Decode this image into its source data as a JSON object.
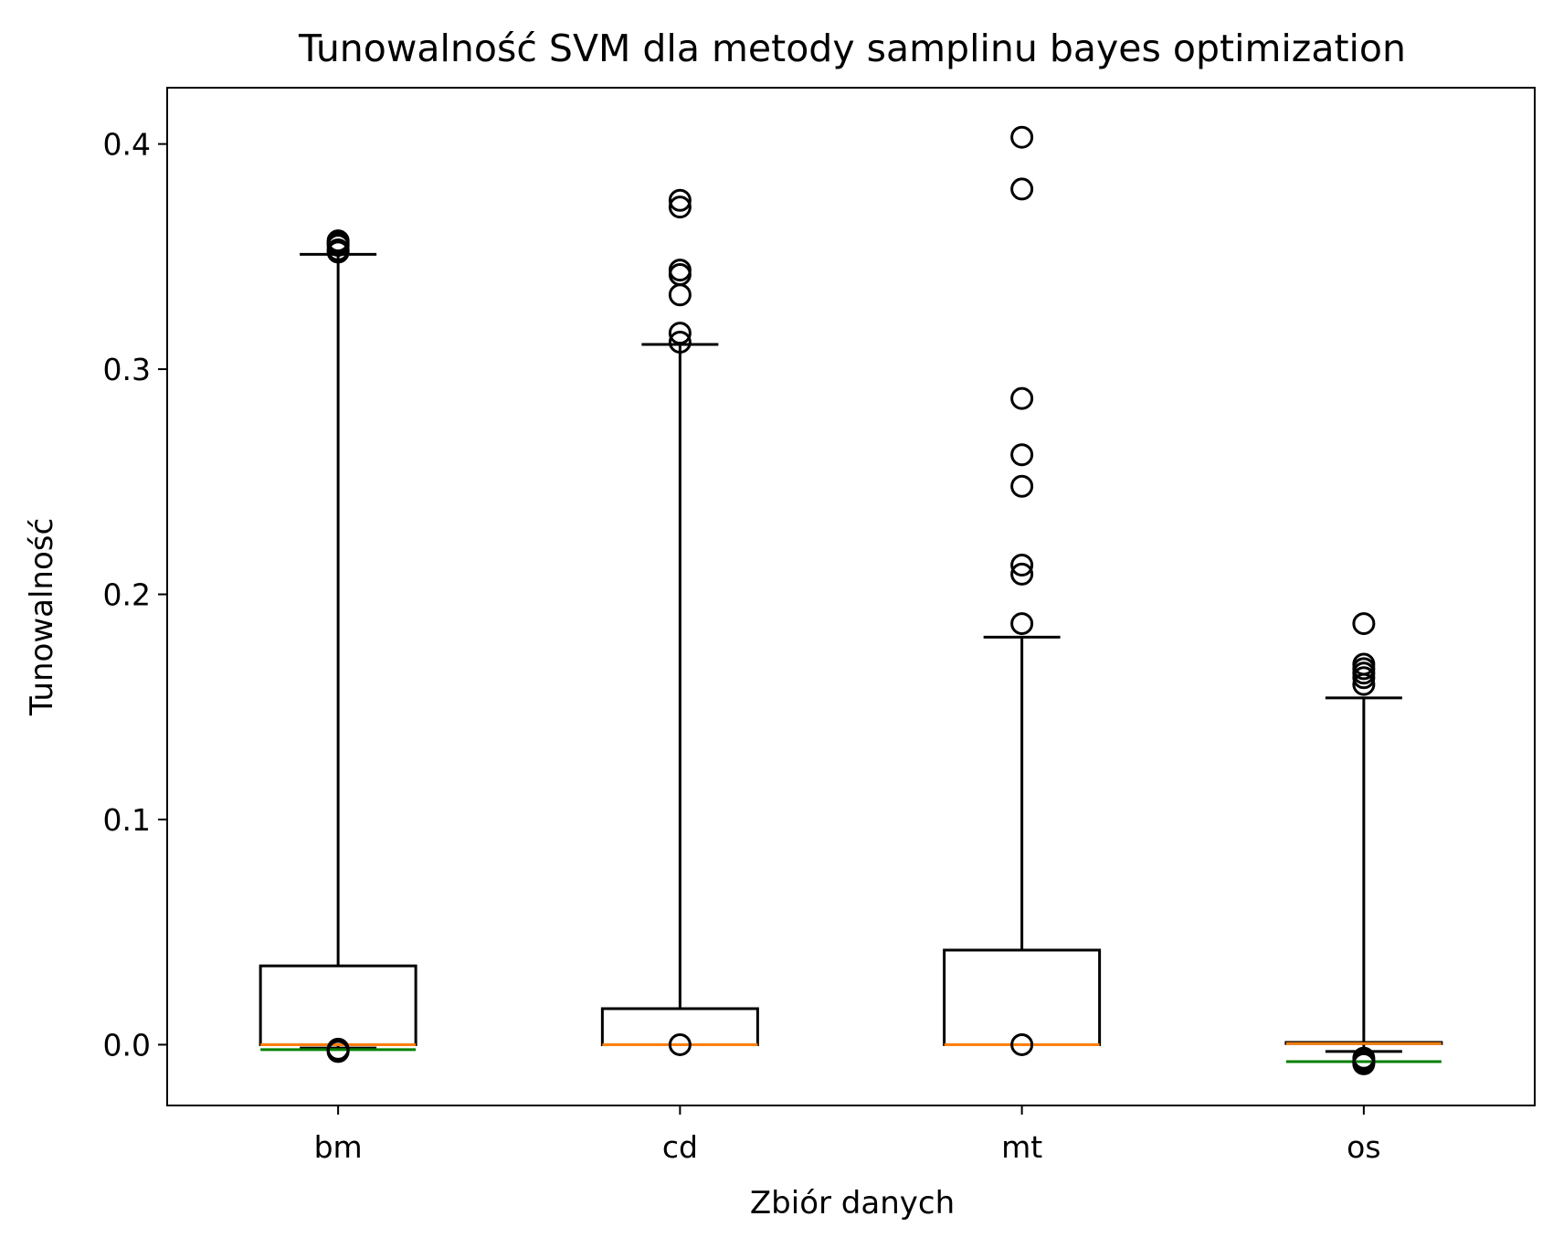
{
  "chart_data": {
    "type": "box",
    "title": "Tunowalność SVM dla metody samplinu bayes optimization",
    "xlabel": "Zbiór danych",
    "ylabel": "Tunowalność",
    "ylim": [
      -0.027,
      0.425
    ],
    "yticks": [
      "0.0",
      "0.1",
      "0.2",
      "0.3",
      "0.4"
    ],
    "ytick_values": [
      0.0,
      0.1,
      0.2,
      0.3,
      0.4
    ],
    "categories": [
      "bm",
      "cd",
      "mt",
      "os"
    ],
    "grid": false,
    "boxes": [
      {
        "label": "bm",
        "q1": 0.0,
        "median": 0.0,
        "q3": 0.035,
        "whisker_low": -0.0015,
        "whisker_high": 0.351,
        "mean": -0.0022,
        "outliers": [
          0.357,
          0.356,
          0.355,
          0.353,
          0.352,
          -0.002,
          -0.0025,
          -0.003
        ]
      },
      {
        "label": "cd",
        "q1": 0.0,
        "median": 0.0,
        "q3": 0.016,
        "whisker_low": 0.0,
        "whisker_high": 0.311,
        "mean": null,
        "outliers": [
          0.375,
          0.372,
          0.344,
          0.342,
          0.333,
          0.316,
          0.312,
          0.0
        ]
      },
      {
        "label": "mt",
        "q1": 0.0,
        "median": 0.0,
        "q3": 0.042,
        "whisker_low": 0.0,
        "whisker_high": 0.181,
        "mean": null,
        "outliers": [
          0.403,
          0.38,
          0.287,
          0.262,
          0.248,
          0.213,
          0.209,
          0.187,
          0.0
        ]
      },
      {
        "label": "os",
        "q1": 0.0005,
        "median": 0.0005,
        "q3": 0.001,
        "whisker_low": -0.003,
        "whisker_high": 0.154,
        "mean": -0.0075,
        "outliers": [
          0.187,
          0.169,
          0.167,
          0.165,
          0.163,
          0.16,
          -0.006,
          -0.007,
          -0.008,
          -0.0085
        ]
      }
    ],
    "colors": {
      "box": "#000000",
      "median": "#ff7f0e",
      "mean": "#008000"
    }
  }
}
